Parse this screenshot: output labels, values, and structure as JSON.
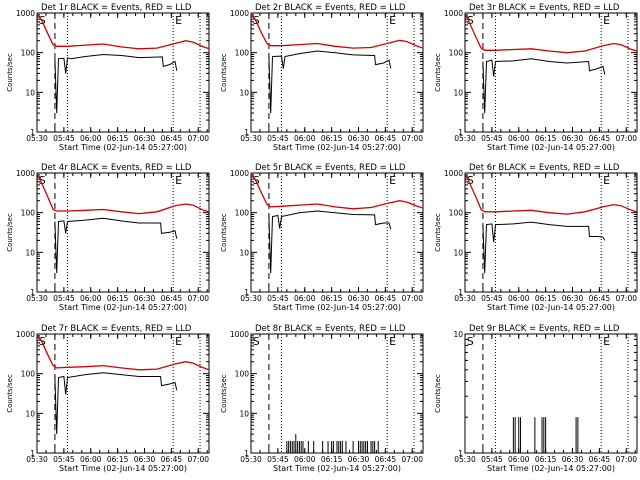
{
  "chart_data": {
    "type": "line",
    "xlabel": "Start Time (02-Jun-14 05:27:00)",
    "ylabel": "Counts/sec",
    "x_ticks": [
      "05:30",
      "05:45",
      "06:00",
      "06:15",
      "06:30",
      "06:45",
      "07:00"
    ],
    "x_tick_minutes": [
      3,
      18,
      33,
      48,
      63,
      78,
      93
    ],
    "x_range_minutes": [
      3,
      99
    ],
    "y_scale": "log",
    "y_ticks": [
      "1",
      "10",
      "100",
      "1000"
    ],
    "y_range": [
      1,
      1000
    ],
    "markers": {
      "start_label": "S",
      "end_label": "E",
      "start_min": 4,
      "dashed_min": 13,
      "dotted_min": 20,
      "end_min": 79,
      "end_dotted2_min": 94
    },
    "series_colors": {
      "events": "#000000",
      "lld": "#d40000"
    },
    "panels": [
      {
        "title": "Det 1r BLACK = Events, RED = LLD",
        "lld": [
          [
            3,
            1000
          ],
          [
            6,
            600
          ],
          [
            9,
            300
          ],
          [
            12,
            160
          ],
          [
            14,
            145
          ],
          [
            20,
            145
          ],
          [
            30,
            155
          ],
          [
            40,
            165
          ],
          [
            50,
            140
          ],
          [
            60,
            125
          ],
          [
            70,
            130
          ],
          [
            80,
            170
          ],
          [
            86,
            200
          ],
          [
            90,
            185
          ],
          [
            96,
            140
          ],
          [
            99,
            125
          ]
        ],
        "events": [
          [
            13,
            70
          ],
          [
            14,
            3
          ],
          [
            15,
            70
          ],
          [
            18,
            72
          ],
          [
            19,
            30
          ],
          [
            20,
            74
          ],
          [
            22,
            70
          ],
          [
            30,
            80
          ],
          [
            40,
            90
          ],
          [
            50,
            85
          ],
          [
            60,
            75
          ],
          [
            73,
            78
          ],
          [
            73.5,
            45
          ],
          [
            77,
            50
          ],
          [
            80,
            60
          ],
          [
            81,
            35
          ]
        ]
      },
      {
        "title": "Det 2r BLACK = Events, RED = LLD",
        "lld": [
          [
            3,
            1000
          ],
          [
            6,
            600
          ],
          [
            9,
            300
          ],
          [
            12,
            170
          ],
          [
            14,
            150
          ],
          [
            20,
            150
          ],
          [
            30,
            160
          ],
          [
            40,
            170
          ],
          [
            50,
            145
          ],
          [
            60,
            130
          ],
          [
            70,
            135
          ],
          [
            80,
            175
          ],
          [
            86,
            205
          ],
          [
            90,
            190
          ],
          [
            96,
            145
          ],
          [
            99,
            130
          ]
        ],
        "events": [
          [
            13,
            80
          ],
          [
            14,
            3
          ],
          [
            15,
            80
          ],
          [
            20,
            82
          ],
          [
            21,
            40
          ],
          [
            22,
            80
          ],
          [
            30,
            95
          ],
          [
            40,
            110
          ],
          [
            50,
            100
          ],
          [
            60,
            88
          ],
          [
            72,
            85
          ],
          [
            72.5,
            50
          ],
          [
            77,
            55
          ],
          [
            80,
            65
          ],
          [
            81,
            40
          ]
        ]
      },
      {
        "title": "Det 3r BLACK = Events, RED = LLD",
        "lld": [
          [
            3,
            1000
          ],
          [
            6,
            500
          ],
          [
            9,
            250
          ],
          [
            12,
            130
          ],
          [
            14,
            115
          ],
          [
            20,
            115
          ],
          [
            30,
            120
          ],
          [
            40,
            125
          ],
          [
            50,
            110
          ],
          [
            60,
            100
          ],
          [
            70,
            110
          ],
          [
            80,
            150
          ],
          [
            86,
            170
          ],
          [
            90,
            160
          ],
          [
            96,
            120
          ],
          [
            99,
            110
          ]
        ],
        "events": [
          [
            13,
            60
          ],
          [
            14,
            3
          ],
          [
            15,
            60
          ],
          [
            18,
            65
          ],
          [
            19,
            25
          ],
          [
            20,
            60
          ],
          [
            30,
            62
          ],
          [
            40,
            70
          ],
          [
            50,
            60
          ],
          [
            60,
            55
          ],
          [
            72,
            60
          ],
          [
            72.5,
            35
          ],
          [
            77,
            40
          ],
          [
            80,
            45
          ],
          [
            81,
            28
          ]
        ]
      },
      {
        "title": "Det 4r BLACK = Events, RED = LLD",
        "lld": [
          [
            3,
            1000
          ],
          [
            6,
            500
          ],
          [
            9,
            250
          ],
          [
            12,
            120
          ],
          [
            14,
            110
          ],
          [
            20,
            110
          ],
          [
            30,
            115
          ],
          [
            40,
            120
          ],
          [
            50,
            105
          ],
          [
            60,
            95
          ],
          [
            70,
            105
          ],
          [
            80,
            150
          ],
          [
            86,
            165
          ],
          [
            90,
            155
          ],
          [
            96,
            115
          ],
          [
            99,
            105
          ]
        ],
        "events": [
          [
            13,
            60
          ],
          [
            14,
            3
          ],
          [
            15,
            60
          ],
          [
            18,
            62
          ],
          [
            19,
            30
          ],
          [
            20,
            60
          ],
          [
            30,
            65
          ],
          [
            40,
            72
          ],
          [
            50,
            62
          ],
          [
            60,
            55
          ],
          [
            72,
            55
          ],
          [
            72.5,
            30
          ],
          [
            77,
            32
          ],
          [
            80,
            35
          ],
          [
            81,
            22
          ]
        ]
      },
      {
        "title": "Det 5r BLACK = Events, RED = LLD",
        "lld": [
          [
            3,
            1000
          ],
          [
            6,
            600
          ],
          [
            9,
            300
          ],
          [
            12,
            160
          ],
          [
            14,
            140
          ],
          [
            20,
            145
          ],
          [
            30,
            155
          ],
          [
            40,
            165
          ],
          [
            50,
            140
          ],
          [
            60,
            125
          ],
          [
            70,
            135
          ],
          [
            80,
            175
          ],
          [
            86,
            200
          ],
          [
            90,
            185
          ],
          [
            96,
            145
          ],
          [
            99,
            130
          ]
        ],
        "events": [
          [
            13,
            80
          ],
          [
            14,
            3
          ],
          [
            15,
            80
          ],
          [
            18,
            85
          ],
          [
            19,
            40
          ],
          [
            20,
            80
          ],
          [
            30,
            100
          ],
          [
            40,
            110
          ],
          [
            50,
            100
          ],
          [
            60,
            90
          ],
          [
            72,
            88
          ],
          [
            72.5,
            50
          ],
          [
            77,
            55
          ],
          [
            80,
            55
          ],
          [
            81,
            38
          ]
        ]
      },
      {
        "title": "Det 6r BLACK = Events, RED = LLD",
        "lld": [
          [
            3,
            1000
          ],
          [
            6,
            500
          ],
          [
            9,
            250
          ],
          [
            12,
            120
          ],
          [
            14,
            105
          ],
          [
            20,
            105
          ],
          [
            30,
            110
          ],
          [
            40,
            115
          ],
          [
            50,
            100
          ],
          [
            60,
            92
          ],
          [
            70,
            105
          ],
          [
            80,
            140
          ],
          [
            86,
            160
          ],
          [
            90,
            150
          ],
          [
            96,
            115
          ],
          [
            99,
            105
          ]
        ],
        "events": [
          [
            13,
            50
          ],
          [
            14,
            3
          ],
          [
            15,
            50
          ],
          [
            18,
            52
          ],
          [
            19,
            18
          ],
          [
            20,
            50
          ],
          [
            30,
            52
          ],
          [
            40,
            58
          ],
          [
            50,
            50
          ],
          [
            60,
            45
          ],
          [
            72,
            45
          ],
          [
            72.5,
            25
          ],
          [
            77,
            25
          ],
          [
            80,
            24
          ],
          [
            81,
            20
          ]
        ]
      },
      {
        "title": "Det 7r BLACK = Events, RED = LLD",
        "lld": [
          [
            3,
            1000
          ],
          [
            6,
            600
          ],
          [
            9,
            300
          ],
          [
            12,
            160
          ],
          [
            14,
            140
          ],
          [
            20,
            145
          ],
          [
            30,
            150
          ],
          [
            40,
            160
          ],
          [
            50,
            140
          ],
          [
            60,
            125
          ],
          [
            70,
            130
          ],
          [
            80,
            175
          ],
          [
            86,
            200
          ],
          [
            90,
            185
          ],
          [
            96,
            140
          ],
          [
            99,
            125
          ]
        ],
        "events": [
          [
            13,
            80
          ],
          [
            14,
            3
          ],
          [
            15,
            80
          ],
          [
            18,
            85
          ],
          [
            19,
            30
          ],
          [
            20,
            80
          ],
          [
            30,
            95
          ],
          [
            40,
            105
          ],
          [
            50,
            95
          ],
          [
            60,
            85
          ],
          [
            72,
            85
          ],
          [
            72.5,
            50
          ],
          [
            77,
            55
          ],
          [
            80,
            60
          ],
          [
            81,
            38
          ]
        ]
      },
      {
        "title": "Det 8r BLACK = Events, RED = LLD",
        "lld": [],
        "spikes": [
          [
            23,
            2
          ],
          [
            24,
            2
          ],
          [
            25,
            2
          ],
          [
            26,
            2
          ],
          [
            27,
            2
          ],
          [
            28,
            3
          ],
          [
            29,
            2
          ],
          [
            30,
            2
          ],
          [
            31,
            2
          ],
          [
            32,
            2
          ],
          [
            35,
            2
          ],
          [
            38,
            2
          ],
          [
            43,
            2
          ],
          [
            46,
            2
          ],
          [
            48,
            2
          ],
          [
            49,
            2
          ],
          [
            51,
            2
          ],
          [
            52,
            2
          ],
          [
            53,
            2
          ],
          [
            54,
            2
          ],
          [
            56,
            2
          ],
          [
            60,
            2
          ],
          [
            63,
            2
          ],
          [
            64,
            2
          ],
          [
            65,
            2
          ],
          [
            66,
            2
          ],
          [
            67,
            2
          ],
          [
            68,
            2
          ],
          [
            70,
            2
          ],
          [
            71,
            2
          ],
          [
            72,
            2
          ],
          [
            74,
            2
          ]
        ]
      },
      {
        "title": "Det 9r BLACK = Events, RED = LLD",
        "lld": [],
        "y_ticks": [
          "1",
          "10"
        ],
        "y_range": [
          1,
          10
        ],
        "spikes": [
          [
            30,
            2
          ],
          [
            31,
            2
          ],
          [
            33,
            2
          ],
          [
            34,
            2
          ],
          [
            42,
            2
          ],
          [
            46,
            2
          ],
          [
            47,
            2
          ],
          [
            48,
            2
          ],
          [
            65,
            2
          ],
          [
            66,
            2
          ]
        ]
      }
    ]
  }
}
